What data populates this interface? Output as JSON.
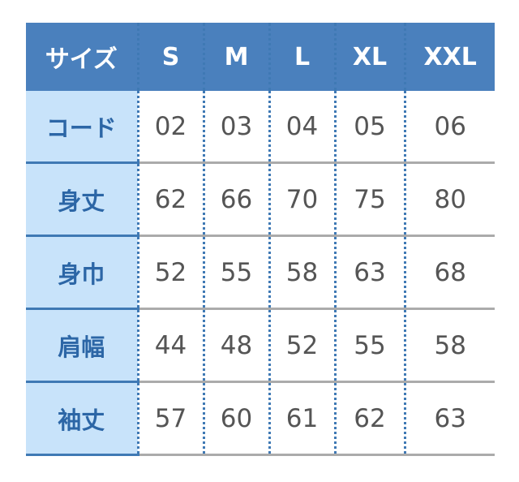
{
  "header": {
    "label": "サイズ",
    "sizes": [
      "S",
      "M",
      "L",
      "XL",
      "XXL"
    ]
  },
  "rows": [
    {
      "label": "コード",
      "values": [
        "02",
        "03",
        "04",
        "05",
        "06"
      ]
    },
    {
      "label": "身丈",
      "values": [
        "62",
        "66",
        "70",
        "75",
        "80"
      ]
    },
    {
      "label": "身巾",
      "values": [
        "52",
        "55",
        "58",
        "63",
        "68"
      ]
    },
    {
      "label": "肩幅",
      "values": [
        "44",
        "48",
        "52",
        "55",
        "58"
      ]
    },
    {
      "label": "袖丈",
      "values": [
        "57",
        "60",
        "61",
        "62",
        "63"
      ]
    }
  ],
  "colors": {
    "header_bg": "#4a80bd",
    "label_col_bg": "#c8e3fa",
    "label_text": "#2c66a6",
    "value_text": "#555555"
  }
}
